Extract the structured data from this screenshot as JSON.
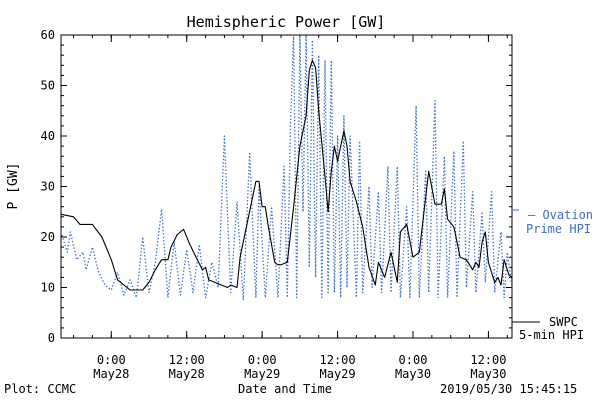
{
  "chart_data": {
    "type": "line",
    "title": "Hemispheric Power [GW]",
    "xlabel": "Date and Time",
    "ylabel": "P [GW]",
    "ylim": [
      0,
      60
    ],
    "xlim": [
      "2019-05-27 16:00",
      "2019-05-30 15:45"
    ],
    "yticks": [
      0,
      10,
      20,
      30,
      40,
      50,
      60
    ],
    "xticks": [
      {
        "x": "2019-05-28 00:00",
        "time": "0:00",
        "date": "May28"
      },
      {
        "x": "2019-05-28 12:00",
        "time": "12:00",
        "date": "May28"
      },
      {
        "x": "2019-05-29 00:00",
        "time": "0:00",
        "date": "May29"
      },
      {
        "x": "2019-05-29 12:00",
        "time": "12:00",
        "date": "May29"
      },
      {
        "x": "2019-05-30 00:00",
        "time": "0:00",
        "date": "May30"
      },
      {
        "x": "2019-05-30 12:00",
        "time": "12:00",
        "date": "May30"
      }
    ],
    "grid": false,
    "legend": "right",
    "series": [
      {
        "name": "SWPC 5-min HPI",
        "color": "#000000",
        "style": "solid",
        "points": [
          [
            "2019-05-27 16:00",
            24.5
          ],
          [
            "2019-05-27 18:00",
            24
          ],
          [
            "2019-05-27 19:00",
            22.5
          ],
          [
            "2019-05-27 21:00",
            22.5
          ],
          [
            "2019-05-27 22:30",
            20
          ],
          [
            "2019-05-28 00:00",
            15.5
          ],
          [
            "2019-05-28 01:00",
            11.5
          ],
          [
            "2019-05-28 02:00",
            10.5
          ],
          [
            "2019-05-28 03:00",
            9.5
          ],
          [
            "2019-05-28 05:00",
            9.5
          ],
          [
            "2019-05-28 06:00",
            11
          ],
          [
            "2019-05-28 07:00",
            13.5
          ],
          [
            "2019-05-28 08:00",
            15.5
          ],
          [
            "2019-05-28 09:00",
            15.5
          ],
          [
            "2019-05-28 09:30",
            18
          ],
          [
            "2019-05-28 10:30",
            20.5
          ],
          [
            "2019-05-28 11:30",
            21.5
          ],
          [
            "2019-05-28 12:30",
            18.5
          ],
          [
            "2019-05-28 13:30",
            16
          ],
          [
            "2019-05-28 14:30",
            13.5
          ],
          [
            "2019-05-28 15:00",
            14
          ],
          [
            "2019-05-28 15:30",
            11.5
          ],
          [
            "2019-05-28 16:30",
            11
          ],
          [
            "2019-05-28 17:30",
            10.5
          ],
          [
            "2019-05-28 18:30",
            10
          ],
          [
            "2019-05-28 19:00",
            10.5
          ],
          [
            "2019-05-28 20:00",
            10
          ],
          [
            "2019-05-28 20:30",
            16
          ],
          [
            "2019-05-28 21:30",
            22
          ],
          [
            "2019-05-28 22:30",
            28
          ],
          [
            "2019-05-28 23:00",
            31
          ],
          [
            "2019-05-28 23:30",
            31
          ],
          [
            "2019-05-29 00:00",
            26
          ],
          [
            "2019-05-29 00:30",
            26
          ],
          [
            "2019-05-29 01:00",
            22
          ],
          [
            "2019-05-29 02:00",
            15
          ],
          [
            "2019-05-29 02:30",
            14.5
          ],
          [
            "2019-05-29 03:00",
            14.5
          ],
          [
            "2019-05-29 04:00",
            15
          ],
          [
            "2019-05-29 05:00",
            26
          ],
          [
            "2019-05-29 06:00",
            38
          ],
          [
            "2019-05-29 07:00",
            44
          ],
          [
            "2019-05-29 07:30",
            53
          ],
          [
            "2019-05-29 08:00",
            55
          ],
          [
            "2019-05-29 08:30",
            53.5
          ],
          [
            "2019-05-29 09:00",
            45
          ],
          [
            "2019-05-29 10:00",
            32
          ],
          [
            "2019-05-29 10:30",
            25
          ],
          [
            "2019-05-29 11:00",
            33
          ],
          [
            "2019-05-29 11:30",
            38
          ],
          [
            "2019-05-29 12:00",
            35
          ],
          [
            "2019-05-29 13:00",
            41
          ],
          [
            "2019-05-29 13:30",
            38
          ],
          [
            "2019-05-29 14:00",
            31
          ],
          [
            "2019-05-29 15:00",
            27
          ],
          [
            "2019-05-29 16:00",
            22
          ],
          [
            "2019-05-29 17:00",
            14
          ],
          [
            "2019-05-29 18:00",
            10.5
          ],
          [
            "2019-05-29 18:30",
            15
          ],
          [
            "2019-05-29 19:30",
            12
          ],
          [
            "2019-05-29 20:30",
            17
          ],
          [
            "2019-05-29 21:30",
            11
          ],
          [
            "2019-05-29 22:00",
            21
          ],
          [
            "2019-05-29 23:00",
            22.5
          ],
          [
            "2019-05-30 00:00",
            16
          ],
          [
            "2019-05-30 01:00",
            17
          ],
          [
            "2019-05-30 02:30",
            33
          ],
          [
            "2019-05-30 03:30",
            26.5
          ],
          [
            "2019-05-30 04:30",
            26.5
          ],
          [
            "2019-05-30 05:00",
            29.5
          ],
          [
            "2019-05-30 05:30",
            23.5
          ],
          [
            "2019-05-30 06:30",
            22
          ],
          [
            "2019-05-30 07:30",
            16
          ],
          [
            "2019-05-30 08:30",
            15.5
          ],
          [
            "2019-05-30 09:30",
            13.5
          ],
          [
            "2019-05-30 10:00",
            15
          ],
          [
            "2019-05-30 10:30",
            14
          ],
          [
            "2019-05-30 11:00",
            19
          ],
          [
            "2019-05-30 11:30",
            21
          ],
          [
            "2019-05-30 12:00",
            15
          ],
          [
            "2019-05-30 13:00",
            11
          ],
          [
            "2019-05-30 13:30",
            12
          ],
          [
            "2019-05-30 14:00",
            10.5
          ],
          [
            "2019-05-30 14:30",
            15.5
          ],
          [
            "2019-05-30 15:15",
            12.5
          ],
          [
            "2019-05-30 15:45",
            12
          ]
        ]
      },
      {
        "name": "Ovation Prime HPI",
        "color": "#3a6fc4",
        "style": "dotted",
        "points": [
          [
            "2019-05-27 16:00",
            21
          ],
          [
            "2019-05-27 17:00",
            17
          ],
          [
            "2019-05-27 17:30",
            21
          ],
          [
            "2019-05-27 18:30",
            15.5
          ],
          [
            "2019-05-27 19:30",
            17
          ],
          [
            "2019-05-27 20:00",
            13.5
          ],
          [
            "2019-05-27 21:00",
            18
          ],
          [
            "2019-05-27 22:00",
            13
          ],
          [
            "2019-05-27 23:00",
            10.5
          ],
          [
            "2019-05-28 00:00",
            9.5
          ],
          [
            "2019-05-28 01:00",
            13
          ],
          [
            "2019-05-28 02:00",
            8.5
          ],
          [
            "2019-05-28 03:00",
            11.5
          ],
          [
            "2019-05-28 04:00",
            8
          ],
          [
            "2019-05-28 05:00",
            20
          ],
          [
            "2019-05-28 06:00",
            9
          ],
          [
            "2019-05-28 07:00",
            15
          ],
          [
            "2019-05-28 08:00",
            25.5
          ],
          [
            "2019-05-28 09:00",
            8
          ],
          [
            "2019-05-28 10:00",
            19
          ],
          [
            "2019-05-28 11:00",
            8.5
          ],
          [
            "2019-05-28 12:00",
            17.5
          ],
          [
            "2019-05-28 13:00",
            9
          ],
          [
            "2019-05-28 14:00",
            18.5
          ],
          [
            "2019-05-28 15:00",
            8
          ],
          [
            "2019-05-28 16:00",
            15
          ],
          [
            "2019-05-28 17:00",
            10
          ],
          [
            "2019-05-28 18:00",
            40
          ],
          [
            "2019-05-28 19:00",
            9
          ],
          [
            "2019-05-28 20:00",
            27
          ],
          [
            "2019-05-28 21:00",
            7.5
          ],
          [
            "2019-05-28 22:00",
            36.5
          ],
          [
            "2019-05-28 23:00",
            8
          ],
          [
            "2019-05-28 23:30",
            30
          ],
          [
            "2019-05-29 00:30",
            8
          ],
          [
            "2019-05-29 01:30",
            26
          ],
          [
            "2019-05-29 02:30",
            8
          ],
          [
            "2019-05-29 03:30",
            34
          ],
          [
            "2019-05-29 04:00",
            8
          ],
          [
            "2019-05-29 04:30",
            42
          ],
          [
            "2019-05-29 05:00",
            60
          ],
          [
            "2019-05-29 05:30",
            8
          ],
          [
            "2019-05-29 06:00",
            60
          ],
          [
            "2019-05-29 06:30",
            25
          ],
          [
            "2019-05-29 07:00",
            60
          ],
          [
            "2019-05-29 07:30",
            14
          ],
          [
            "2019-05-29 08:00",
            59
          ],
          [
            "2019-05-29 08:30",
            12
          ],
          [
            "2019-05-29 09:00",
            56
          ],
          [
            "2019-05-29 09:30",
            8
          ],
          [
            "2019-05-29 10:00",
            55
          ],
          [
            "2019-05-29 10:30",
            9
          ],
          [
            "2019-05-29 11:00",
            55
          ],
          [
            "2019-05-29 11:30",
            9
          ],
          [
            "2019-05-29 12:00",
            40
          ],
          [
            "2019-05-29 12:30",
            8
          ],
          [
            "2019-05-29 13:00",
            44
          ],
          [
            "2019-05-29 13:30",
            10
          ],
          [
            "2019-05-29 14:00",
            40
          ],
          [
            "2019-05-29 15:00",
            8
          ],
          [
            "2019-05-29 15:30",
            39
          ],
          [
            "2019-05-29 16:00",
            9
          ],
          [
            "2019-05-29 17:00",
            30
          ],
          [
            "2019-05-29 17:30",
            10
          ],
          [
            "2019-05-29 18:30",
            29
          ],
          [
            "2019-05-29 19:00",
            9
          ],
          [
            "2019-05-29 20:00",
            34
          ],
          [
            "2019-05-29 20:30",
            9
          ],
          [
            "2019-05-29 21:30",
            34
          ],
          [
            "2019-05-29 22:00",
            8
          ],
          [
            "2019-05-29 23:00",
            26
          ],
          [
            "2019-05-29 23:30",
            8
          ],
          [
            "2019-05-30 00:30",
            46
          ],
          [
            "2019-05-30 01:00",
            8
          ],
          [
            "2019-05-30 02:00",
            33
          ],
          [
            "2019-05-30 02:30",
            9
          ],
          [
            "2019-05-30 03:30",
            47
          ],
          [
            "2019-05-30 04:00",
            8
          ],
          [
            "2019-05-30 05:00",
            36
          ],
          [
            "2019-05-30 05:30",
            8
          ],
          [
            "2019-05-30 06:30",
            37
          ],
          [
            "2019-05-30 07:00",
            8
          ],
          [
            "2019-05-30 08:00",
            39
          ],
          [
            "2019-05-30 08:30",
            10
          ],
          [
            "2019-05-30 09:30",
            29
          ],
          [
            "2019-05-30 10:00",
            9
          ],
          [
            "2019-05-30 11:00",
            25
          ],
          [
            "2019-05-30 11:30",
            11
          ],
          [
            "2019-05-30 12:30",
            29
          ],
          [
            "2019-05-30 13:00",
            9
          ],
          [
            "2019-05-30 14:00",
            21
          ],
          [
            "2019-05-30 14:30",
            8
          ],
          [
            "2019-05-30 15:00",
            17
          ],
          [
            "2019-05-30 15:45",
            10
          ]
        ]
      }
    ]
  },
  "legend": {
    "ovation_line1": "– Ovation",
    "ovation_line2": "Prime HPI",
    "swpc_line1": "SWPC",
    "swpc_line2": "5-min HPI"
  },
  "footer": {
    "left": "Plot: CCMC",
    "center": "Date and Time",
    "right": "2019/05/30 15:45:15"
  }
}
